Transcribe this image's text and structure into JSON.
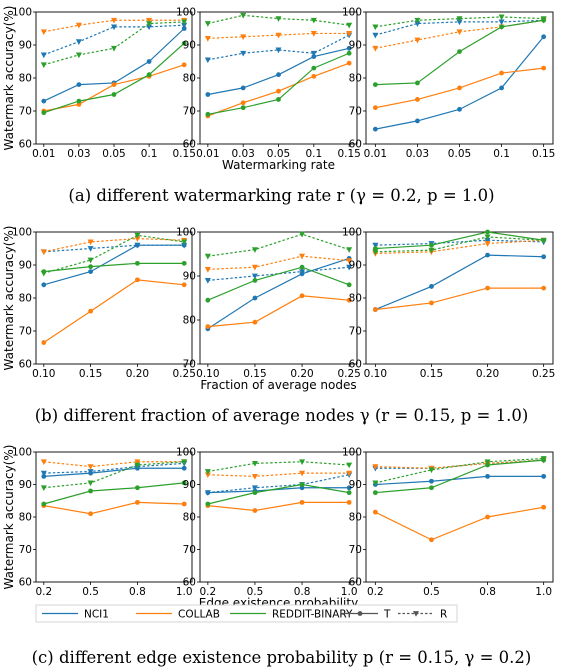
{
  "figure": {
    "captions": [
      "(a) different watermarking rate r (γ = 0.2, p = 1.0)",
      "(b) different fraction of average nodes γ (r = 0.15, p = 1.0)",
      "(c) different edge existence probability p (r = 0.15, γ = 0.2)"
    ],
    "legend": [
      "NCI1",
      "COLLAB",
      "REDDIT-BINARY",
      "T",
      "R"
    ],
    "colors": {
      "NCI1": "#1f77b4",
      "COLLAB": "#ff7f0e",
      "REDDIT-BINARY": "#2ca02c",
      "marker": "#555555"
    }
  },
  "chart_data": [
    {
      "type": "line",
      "row": "a",
      "panel": 1,
      "ylabel": "Watermark accuracy(%)",
      "xlabel": "",
      "x": [
        0.01,
        0.03,
        0.05,
        0.1,
        0.15
      ],
      "xticks": [
        "0.01",
        "0.03",
        "0.05",
        "0.1",
        "0.15"
      ],
      "ylim": [
        60,
        100
      ],
      "yticks": [
        60,
        70,
        80,
        90,
        100
      ],
      "series": [
        {
          "name": "NCI1",
          "style": "T",
          "values": [
            73,
            78,
            78.5,
            85,
            95
          ]
        },
        {
          "name": "NCI1",
          "style": "R",
          "values": [
            87,
            91,
            95.5,
            95.5,
            96
          ]
        },
        {
          "name": "COLLAB",
          "style": "T",
          "values": [
            70,
            72,
            78,
            80.5,
            84
          ]
        },
        {
          "name": "COLLAB",
          "style": "R",
          "values": [
            94,
            96,
            97.5,
            97.5,
            97.5
          ]
        },
        {
          "name": "REDDIT-BINARY",
          "style": "T",
          "values": [
            69.5,
            73,
            75,
            81,
            90.5
          ]
        },
        {
          "name": "REDDIT-BINARY",
          "style": "R",
          "values": [
            84,
            87,
            89,
            96.5,
            97
          ]
        }
      ]
    },
    {
      "type": "line",
      "row": "a",
      "panel": 2,
      "ylabel": "",
      "xlabel": "Watermarking rate",
      "x": [
        0.01,
        0.03,
        0.05,
        0.1,
        0.15
      ],
      "xticks": [
        "0.01",
        "0.03",
        "0.05",
        "0.1",
        "0.15"
      ],
      "ylim": [
        60,
        100
      ],
      "yticks": [
        60,
        70,
        80,
        90,
        100
      ],
      "series": [
        {
          "name": "NCI1",
          "style": "T",
          "values": [
            75,
            77,
            81,
            86.5,
            89
          ]
        },
        {
          "name": "NCI1",
          "style": "R",
          "values": [
            85.5,
            87.5,
            88.5,
            87.5,
            93
          ]
        },
        {
          "name": "COLLAB",
          "style": "T",
          "values": [
            68.5,
            72.5,
            76,
            80.5,
            84.5
          ]
        },
        {
          "name": "COLLAB",
          "style": "R",
          "values": [
            92,
            92.5,
            93,
            93.5,
            93.5
          ]
        },
        {
          "name": "REDDIT-BINARY",
          "style": "T",
          "values": [
            69,
            71,
            73.5,
            83,
            87.5
          ]
        },
        {
          "name": "REDDIT-BINARY",
          "style": "R",
          "values": [
            96.5,
            99,
            98,
            97.5,
            96
          ]
        }
      ]
    },
    {
      "type": "line",
      "row": "a",
      "panel": 3,
      "ylabel": "",
      "xlabel": "",
      "x": [
        0.01,
        0.03,
        0.05,
        0.1,
        0.15
      ],
      "xticks": [
        "0.01",
        "0.03",
        "0.05",
        "0.1",
        "0.15"
      ],
      "ylim": [
        60,
        100
      ],
      "yticks": [
        60,
        70,
        80,
        90,
        100
      ],
      "series": [
        {
          "name": "NCI1",
          "style": "T",
          "values": [
            64.5,
            67,
            70.5,
            77,
            92.5
          ]
        },
        {
          "name": "NCI1",
          "style": "R",
          "values": [
            93,
            96.5,
            97,
            97,
            97.5
          ]
        },
        {
          "name": "COLLAB",
          "style": "T",
          "values": [
            71,
            73.5,
            77,
            81.5,
            83
          ]
        },
        {
          "name": "COLLAB",
          "style": "R",
          "values": [
            89,
            91.5,
            94,
            95.5,
            97.5
          ]
        },
        {
          "name": "REDDIT-BINARY",
          "style": "T",
          "values": [
            78,
            78.5,
            88,
            95.5,
            97.5
          ]
        },
        {
          "name": "REDDIT-BINARY",
          "style": "R",
          "values": [
            95.5,
            97.5,
            98,
            98.5,
            98
          ]
        }
      ]
    },
    {
      "type": "line",
      "row": "b",
      "panel": 1,
      "ylabel": "Watermark accuracy(%)",
      "xlabel": "",
      "x": [
        0.1,
        0.15,
        0.2,
        0.25
      ],
      "xticks": [
        "0.10",
        "0.15",
        "0.20",
        "0.25"
      ],
      "ylim": [
        60,
        100
      ],
      "yticks": [
        60,
        70,
        80,
        90,
        100
      ],
      "series": [
        {
          "name": "NCI1",
          "style": "T",
          "values": [
            84,
            88,
            96,
            96
          ]
        },
        {
          "name": "NCI1",
          "style": "R",
          "values": [
            94,
            95,
            96,
            96
          ]
        },
        {
          "name": "COLLAB",
          "style": "T",
          "values": [
            66.5,
            76,
            85.5,
            84
          ]
        },
        {
          "name": "COLLAB",
          "style": "R",
          "values": [
            94,
            97,
            98,
            97.5
          ]
        },
        {
          "name": "REDDIT-BINARY",
          "style": "T",
          "values": [
            88,
            89.5,
            90.5,
            90.5
          ]
        },
        {
          "name": "REDDIT-BINARY",
          "style": "R",
          "values": [
            87.5,
            91.5,
            99,
            97
          ]
        }
      ]
    },
    {
      "type": "line",
      "row": "b",
      "panel": 2,
      "ylabel": "",
      "xlabel": "Fraction of average nodes",
      "x": [
        0.1,
        0.15,
        0.2,
        0.25
      ],
      "xticks": [
        "0.10",
        "0.15",
        "0.20",
        "0.25"
      ],
      "ylim": [
        70,
        100
      ],
      "yticks": [
        70,
        80,
        90,
        100
      ],
      "series": [
        {
          "name": "NCI1",
          "style": "T",
          "values": [
            78,
            85,
            90.5,
            94
          ]
        },
        {
          "name": "NCI1",
          "style": "R",
          "values": [
            89,
            90,
            91,
            92
          ]
        },
        {
          "name": "COLLAB",
          "style": "T",
          "values": [
            78.5,
            79.5,
            85.5,
            84.5
          ]
        },
        {
          "name": "COLLAB",
          "style": "R",
          "values": [
            91.5,
            92,
            94.5,
            93.5
          ]
        },
        {
          "name": "REDDIT-BINARY",
          "style": "T",
          "values": [
            84.5,
            89,
            92,
            88
          ]
        },
        {
          "name": "REDDIT-BINARY",
          "style": "R",
          "values": [
            94.5,
            96,
            99.5,
            96
          ]
        }
      ]
    },
    {
      "type": "line",
      "row": "b",
      "panel": 3,
      "ylabel": "",
      "xlabel": "",
      "x": [
        0.1,
        0.15,
        0.2,
        0.25
      ],
      "xticks": [
        "0.10",
        "0.15",
        "0.20",
        "0.25"
      ],
      "ylim": [
        60,
        100
      ],
      "yticks": [
        60,
        70,
        80,
        90,
        100
      ],
      "series": [
        {
          "name": "NCI1",
          "style": "T",
          "values": [
            76.5,
            83.5,
            93,
            92.5
          ]
        },
        {
          "name": "NCI1",
          "style": "R",
          "values": [
            96,
            96.5,
            97.5,
            97
          ]
        },
        {
          "name": "COLLAB",
          "style": "T",
          "values": [
            76.5,
            78.5,
            83,
            83
          ]
        },
        {
          "name": "COLLAB",
          "style": "R",
          "values": [
            93.5,
            94,
            96.5,
            97.5
          ]
        },
        {
          "name": "REDDIT-BINARY",
          "style": "T",
          "values": [
            95,
            96,
            100,
            97.5
          ]
        },
        {
          "name": "REDDIT-BINARY",
          "style": "R",
          "values": [
            94,
            94.5,
            98.5,
            97.5
          ]
        }
      ]
    },
    {
      "type": "line",
      "row": "c",
      "panel": 1,
      "ylabel": "Watermark accuracy(%)",
      "xlabel": "",
      "x": [
        0.2,
        0.5,
        0.8,
        1.0
      ],
      "xticks": [
        "0.2",
        "0.5",
        "0.8",
        "1.0"
      ],
      "ylim": [
        60,
        100
      ],
      "yticks": [
        60,
        70,
        80,
        90,
        100
      ],
      "series": [
        {
          "name": "NCI1",
          "style": "T",
          "values": [
            92.5,
            93.5,
            95,
            95
          ]
        },
        {
          "name": "NCI1",
          "style": "R",
          "values": [
            93.5,
            94,
            95.5,
            96.5
          ]
        },
        {
          "name": "COLLAB",
          "style": "T",
          "values": [
            83.5,
            81,
            84.5,
            84
          ]
        },
        {
          "name": "COLLAB",
          "style": "R",
          "values": [
            97,
            95.5,
            97,
            97
          ]
        },
        {
          "name": "REDDIT-BINARY",
          "style": "T",
          "values": [
            84,
            88,
            89,
            90.5
          ]
        },
        {
          "name": "REDDIT-BINARY",
          "style": "R",
          "values": [
            89,
            90.5,
            96,
            97
          ]
        }
      ]
    },
    {
      "type": "line",
      "row": "c",
      "panel": 2,
      "ylabel": "",
      "xlabel": "Edge existence probability",
      "x": [
        0.2,
        0.5,
        0.8,
        1.0
      ],
      "xticks": [
        "0.2",
        "0.5",
        "0.8",
        "1.0"
      ],
      "ylim": [
        60,
        100
      ],
      "yticks": [
        60,
        70,
        80,
        90,
        100
      ],
      "series": [
        {
          "name": "NCI1",
          "style": "T",
          "values": [
            87.5,
            88,
            89,
            89
          ]
        },
        {
          "name": "NCI1",
          "style": "R",
          "values": [
            87.5,
            89,
            90,
            93
          ]
        },
        {
          "name": "COLLAB",
          "style": "T",
          "values": [
            83.5,
            82,
            84.5,
            84.5
          ]
        },
        {
          "name": "COLLAB",
          "style": "R",
          "values": [
            93,
            92.5,
            93.5,
            93.5
          ]
        },
        {
          "name": "REDDIT-BINARY",
          "style": "T",
          "values": [
            84,
            87.5,
            90,
            87.5
          ]
        },
        {
          "name": "REDDIT-BINARY",
          "style": "R",
          "values": [
            94,
            96.5,
            97,
            96
          ]
        }
      ]
    },
    {
      "type": "line",
      "row": "c",
      "panel": 3,
      "ylabel": "",
      "xlabel": "",
      "x": [
        0.2,
        0.5,
        0.8,
        1.0
      ],
      "xticks": [
        "0.2",
        "0.5",
        "0.8",
        "1.0"
      ],
      "ylim": [
        60,
        100
      ],
      "yticks": [
        60,
        70,
        80,
        90,
        100
      ],
      "series": [
        {
          "name": "NCI1",
          "style": "T",
          "values": [
            90,
            91,
            92.5,
            92.5
          ]
        },
        {
          "name": "NCI1",
          "style": "R",
          "values": [
            95,
            95,
            96.5,
            97.5
          ]
        },
        {
          "name": "COLLAB",
          "style": "T",
          "values": [
            81.5,
            73,
            80,
            83
          ]
        },
        {
          "name": "COLLAB",
          "style": "R",
          "values": [
            95.5,
            95,
            96.5,
            97.5
          ]
        },
        {
          "name": "REDDIT-BINARY",
          "style": "T",
          "values": [
            87.5,
            89,
            96,
            97.5
          ]
        },
        {
          "name": "REDDIT-BINARY",
          "style": "R",
          "values": [
            90.5,
            94.5,
            97,
            98
          ]
        }
      ]
    }
  ]
}
